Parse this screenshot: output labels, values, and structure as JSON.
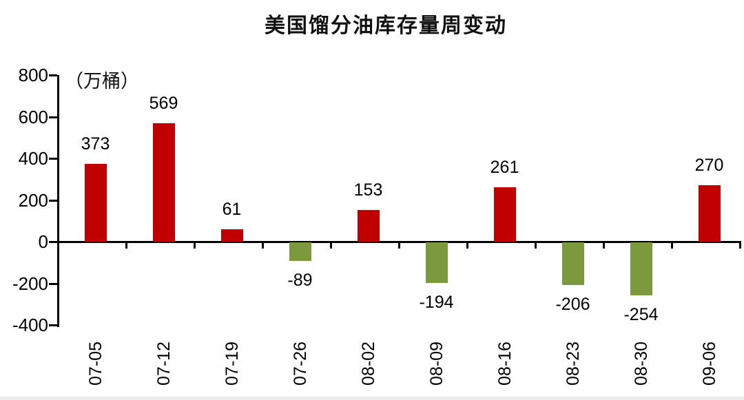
{
  "chart_data": {
    "type": "bar",
    "title": "美国馏分油库存量周变动",
    "unit_label": "（万桶）",
    "categories": [
      "07-05",
      "07-12",
      "07-19",
      "07-26",
      "08-02",
      "08-09",
      "08-16",
      "08-23",
      "08-30",
      "09-06"
    ],
    "values": [
      373,
      569,
      61,
      -89,
      153,
      -194,
      261,
      -206,
      -254,
      270
    ],
    "yticks": [
      800,
      600,
      400,
      200,
      0,
      -200,
      -400
    ],
    "ylim": [
      -400,
      800
    ],
    "positive_color": "#C00000",
    "negative_color": "#7C993E",
    "axis_color": "#000000",
    "grid": false,
    "legend": "none",
    "value_labels_shown": true
  }
}
